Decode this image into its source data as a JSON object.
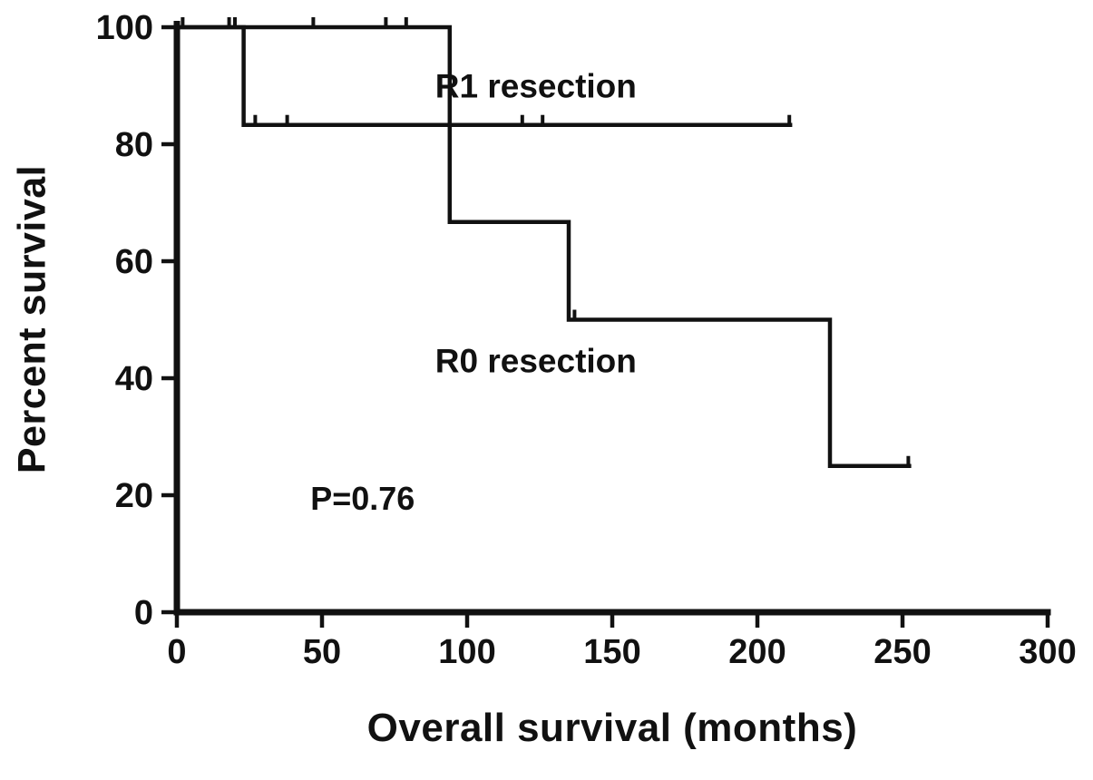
{
  "chart_data": {
    "type": "line",
    "subtype": "kaplan-meier-step",
    "title": "",
    "xlabel": "Overall survival (months)",
    "ylabel": "Percent survival",
    "xlim": [
      0,
      300
    ],
    "ylim": [
      0,
      100
    ],
    "xticks": [
      0,
      50,
      100,
      150,
      200,
      250,
      300
    ],
    "yticks": [
      0,
      20,
      40,
      60,
      80,
      100
    ],
    "grid": false,
    "legend_position": "inline-labels",
    "line_color": "#111111",
    "background": "#ffffff",
    "series": [
      {
        "id": "r1",
        "name": "R1 resection",
        "label": "R1 resection",
        "label_pos": {
          "x": 89,
          "y": 88
        },
        "steps": [
          [
            0,
            100
          ],
          [
            23,
            100
          ],
          [
            23,
            83.3
          ],
          [
            212,
            83.3
          ]
        ],
        "censors": [
          [
            27,
            83.3
          ],
          [
            38,
            83.3
          ],
          [
            119,
            83.3
          ],
          [
            126,
            83.3
          ],
          [
            211,
            83.3
          ]
        ]
      },
      {
        "id": "r0",
        "name": "R0 resection",
        "label": "R0 resection",
        "label_pos": {
          "x": 89,
          "y": 41
        },
        "steps": [
          [
            0,
            100
          ],
          [
            94,
            100
          ],
          [
            94,
            66.7
          ],
          [
            135,
            66.7
          ],
          [
            135,
            50
          ],
          [
            225,
            50
          ],
          [
            225,
            25
          ],
          [
            253,
            25
          ]
        ],
        "censors": [
          [
            2,
            100
          ],
          [
            18,
            100
          ],
          [
            20,
            100
          ],
          [
            47,
            100
          ],
          [
            72,
            100
          ],
          [
            79,
            100
          ],
          [
            137,
            50
          ],
          [
            252,
            25
          ]
        ]
      }
    ],
    "annotations": [
      {
        "id": "p-value",
        "text": "P=0.76",
        "x": 46,
        "y": 17.5
      }
    ]
  }
}
